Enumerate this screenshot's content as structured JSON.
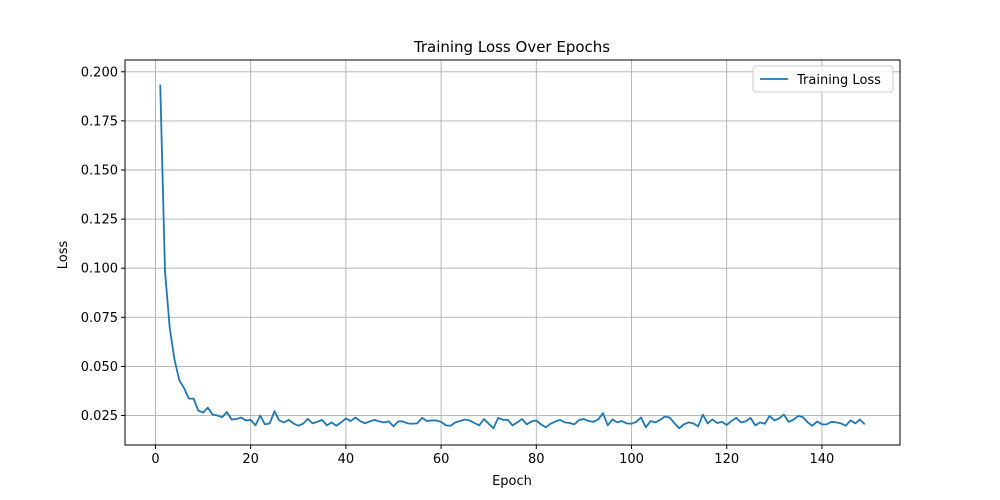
{
  "chart_data": {
    "type": "line",
    "title": "Training Loss Over Epochs",
    "xlabel": "Epoch",
    "ylabel": "Loss",
    "xlim": [
      -6.4,
      156.4
    ],
    "ylim": [
      0.01,
      0.206
    ],
    "xticks": [
      0,
      20,
      40,
      60,
      80,
      100,
      120,
      140
    ],
    "yticks": [
      0.025,
      0.05,
      0.075,
      0.1,
      0.125,
      0.15,
      0.175,
      0.2
    ],
    "ytick_labels": [
      "0.025",
      "0.050",
      "0.075",
      "0.100",
      "0.125",
      "0.150",
      "0.175",
      "0.200"
    ],
    "grid": true,
    "legend_position": "top-right",
    "line_color": "#1f77b4",
    "series": [
      {
        "name": "Training Loss",
        "x": [
          1,
          2,
          3,
          4,
          5,
          6,
          7,
          8,
          9,
          10,
          11,
          12,
          13,
          14,
          15,
          16,
          17,
          18,
          19,
          20,
          21,
          22,
          23,
          24,
          25,
          26,
          27,
          28,
          29,
          30,
          31,
          32,
          33,
          34,
          35,
          36,
          37,
          38,
          39,
          40,
          41,
          42,
          43,
          44,
          45,
          46,
          47,
          48,
          49,
          50,
          51,
          52,
          53,
          54,
          55,
          56,
          57,
          58,
          59,
          60,
          61,
          62,
          63,
          64,
          65,
          66,
          67,
          68,
          69,
          70,
          71,
          72,
          73,
          74,
          75,
          76,
          77,
          78,
          79,
          80,
          81,
          82,
          83,
          84,
          85,
          86,
          87,
          88,
          89,
          90,
          91,
          92,
          93,
          94,
          95,
          96,
          97,
          98,
          99,
          100,
          101,
          102,
          103,
          104,
          105,
          106,
          107,
          108,
          109,
          110,
          111,
          112,
          113,
          114,
          115,
          116,
          117,
          118,
          119,
          120,
          121,
          122,
          123,
          124,
          125,
          126,
          127,
          128,
          129,
          130,
          131,
          132,
          133,
          134,
          135,
          136,
          137,
          138,
          139,
          140,
          141,
          142,
          143,
          144,
          145,
          146,
          147,
          148,
          149
        ],
        "values": [
          0.1935,
          0.0985,
          0.0695,
          0.0535,
          0.043,
          0.039,
          0.0336,
          0.0336,
          0.0275,
          0.0265,
          0.029,
          0.0255,
          0.025,
          0.0242,
          0.0268,
          0.023,
          0.0232,
          0.024,
          0.0225,
          0.0228,
          0.02,
          0.025,
          0.0205,
          0.021,
          0.0272,
          0.0225,
          0.0215,
          0.0228,
          0.021,
          0.0198,
          0.0208,
          0.0233,
          0.021,
          0.0218,
          0.0228,
          0.02,
          0.0215,
          0.0198,
          0.0215,
          0.0235,
          0.0222,
          0.024,
          0.0222,
          0.021,
          0.022,
          0.0228,
          0.022,
          0.0215,
          0.022,
          0.0195,
          0.022,
          0.022,
          0.021,
          0.0208,
          0.021,
          0.0238,
          0.0222,
          0.0225,
          0.0225,
          0.0218,
          0.02,
          0.0198,
          0.0215,
          0.0222,
          0.023,
          0.0225,
          0.0212,
          0.02,
          0.0232,
          0.0208,
          0.0185,
          0.0238,
          0.0228,
          0.0228,
          0.02,
          0.0215,
          0.0232,
          0.0205,
          0.022,
          0.0225,
          0.0205,
          0.019,
          0.0208,
          0.022,
          0.0228,
          0.0215,
          0.0212,
          0.0205,
          0.0228,
          0.0232,
          0.0222,
          0.0218,
          0.023,
          0.0262,
          0.02,
          0.023,
          0.0215,
          0.0222,
          0.021,
          0.0208,
          0.0218,
          0.024,
          0.019,
          0.0222,
          0.0215,
          0.0228,
          0.0245,
          0.024,
          0.0212,
          0.0185,
          0.0205,
          0.0215,
          0.021,
          0.0195,
          0.0255,
          0.021,
          0.023,
          0.0212,
          0.0218,
          0.0202,
          0.0222,
          0.0238,
          0.0215,
          0.022,
          0.0238,
          0.02,
          0.0215,
          0.0208,
          0.0248,
          0.0225,
          0.0235,
          0.0255,
          0.0218,
          0.0228,
          0.0248,
          0.0242,
          0.0215,
          0.0198,
          0.022,
          0.0205,
          0.0205,
          0.0218,
          0.0215,
          0.021,
          0.0198,
          0.0225,
          0.021,
          0.023,
          0.0205
        ]
      }
    ]
  }
}
